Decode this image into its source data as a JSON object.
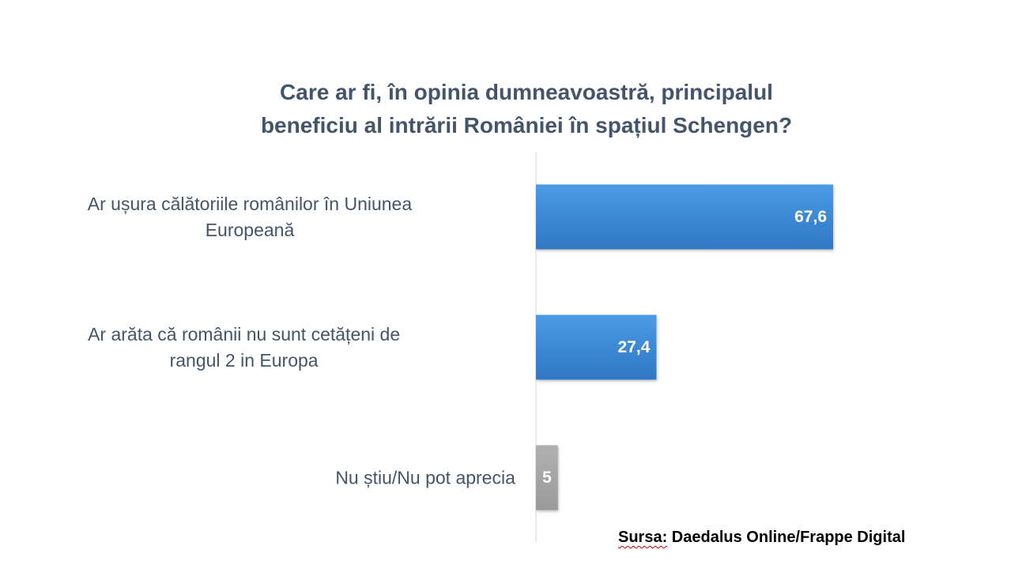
{
  "chart_data": {
    "type": "bar",
    "orientation": "horizontal",
    "title_lines": [
      "Care ar fi, în opinia dumneavoastră, principalul",
      "beneficiu al intrării României în spațiul Schengen?"
    ],
    "categories": [
      [
        "Ar ușura călătoriile românilor în Uniunea",
        "Europeană"
      ],
      [
        "Ar arăta că românii nu sunt cetățeni de",
        "rangul 2 in Europa"
      ],
      [
        "Nu știu/Nu pot aprecia"
      ]
    ],
    "values": [
      67.6,
      27.4,
      5
    ],
    "value_labels": [
      "67,6",
      "27,4",
      "5"
    ],
    "bar_colors": [
      "#3f8fdc",
      "#3f8fdc",
      "#a6a6a6"
    ],
    "xlim": [
      0,
      100
    ],
    "grid": false,
    "legend": "none"
  },
  "source": {
    "prefix": "Sursa:",
    "text": " Daedalus Online/Frappe Digital"
  },
  "colors": {
    "title": "#44546a",
    "axis_line": "#d9d9d9",
    "bar_primary": "#3f8fdc",
    "bar_neutral": "#a6a6a6"
  }
}
